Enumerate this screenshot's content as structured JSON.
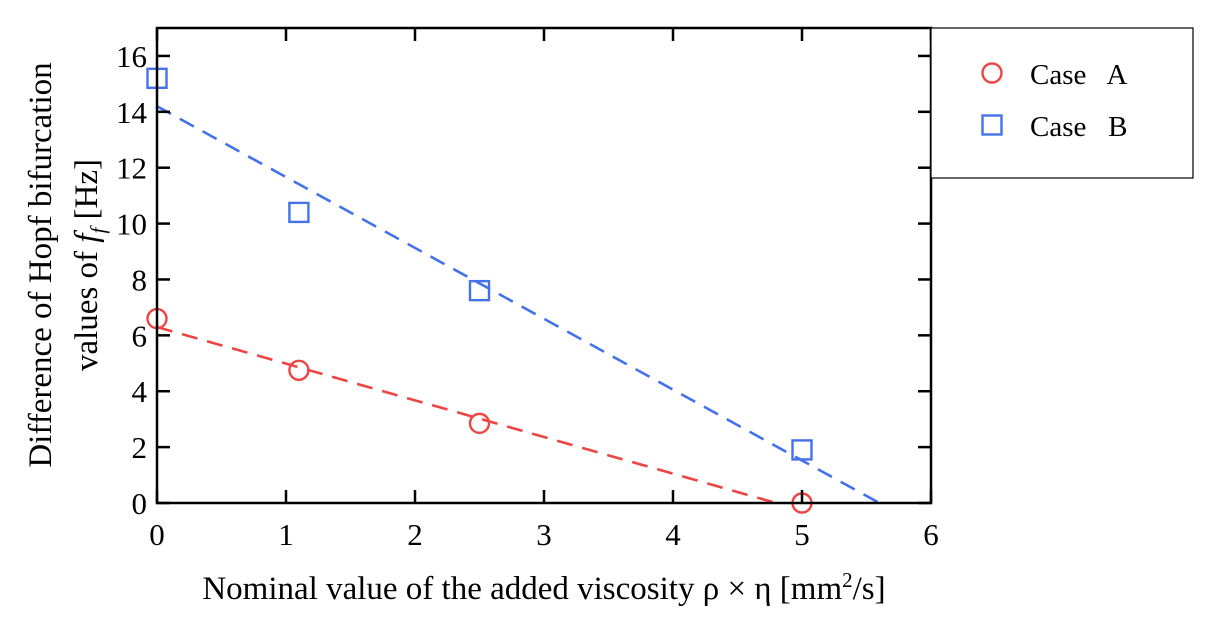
{
  "chart_data": {
    "type": "scatter",
    "title": "",
    "xlabel_parts": {
      "pre": "Nominal value of the added viscosity ρ × η [mm",
      "sup": "2",
      "post": "/s]"
    },
    "ylabel_line1": "Difference of Hopf bifurcation",
    "ylabel_line2_parts": {
      "pre": "values of ",
      "f": "f",
      "sub": "f",
      "post": " [Hz]"
    },
    "xlim": [
      0,
      6
    ],
    "ylim": [
      0,
      17
    ],
    "xticks": [
      0,
      1,
      2,
      3,
      4,
      5,
      6
    ],
    "yticks": [
      0,
      2,
      4,
      6,
      8,
      10,
      12,
      14,
      16
    ],
    "grid": false,
    "legend_position": "outside-top-right",
    "series": [
      {
        "name": "Case   A",
        "marker": "circle",
        "color": "#ee4444",
        "x": [
          0,
          1.1,
          2.5,
          5
        ],
        "y": [
          6.6,
          4.75,
          2.85,
          0
        ],
        "fit": {
          "x": [
            0,
            4.8
          ],
          "y": [
            6.3,
            0
          ]
        }
      },
      {
        "name": "Case   B",
        "marker": "square",
        "color": "#4472e8",
        "x": [
          0,
          1.1,
          2.5,
          5
        ],
        "y": [
          15.2,
          10.4,
          7.6,
          1.9
        ],
        "fit": {
          "x": [
            0,
            5.6
          ],
          "y": [
            14.2,
            0
          ]
        }
      }
    ]
  }
}
